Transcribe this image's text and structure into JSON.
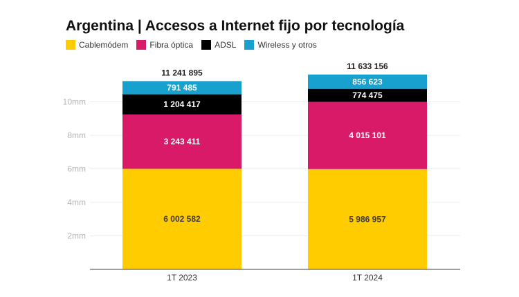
{
  "chart_data": {
    "type": "bar",
    "stacked": true,
    "title": "Argentina | Accesos a Internet fijo por tecnología",
    "categories": [
      "1T 2023",
      "1T 2024"
    ],
    "series": [
      {
        "name": "Cablemódem",
        "color": "#FFCC00",
        "values": [
          6002582,
          5986957
        ],
        "labels": [
          "6 002 582",
          "5 986 957"
        ],
        "label_color": "#3a3a4a"
      },
      {
        "name": "Fibra óptica",
        "color": "#D81A68",
        "values": [
          3243411,
          4015101
        ],
        "labels": [
          "3 243 411",
          "4 015 101"
        ],
        "label_color": "#ffffff"
      },
      {
        "name": "ADSL",
        "color": "#000000",
        "values": [
          1204417,
          774475
        ],
        "labels": [
          "1 204 417",
          "774 475"
        ],
        "label_color": "#ffffff"
      },
      {
        "name": "Wireless y otros",
        "color": "#18A1CE",
        "values": [
          791485,
          856623
        ],
        "labels": [
          "791 485",
          "856 623"
        ],
        "label_color": "#ffffff"
      }
    ],
    "totals": [
      "11 241 895",
      "11 633 156"
    ],
    "yticks": [
      2000000,
      4000000,
      6000000,
      8000000,
      10000000
    ],
    "ytick_labels": [
      "2mm",
      "4mm",
      "6mm",
      "8mm",
      "10mm"
    ],
    "ylim": [
      0,
      12000000
    ],
    "grid": true,
    "legend_position": "top-left"
  }
}
